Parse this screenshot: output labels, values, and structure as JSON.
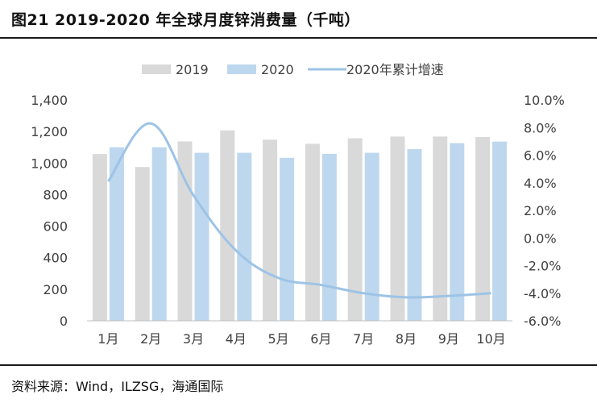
{
  "figure": {
    "title": "图21 2019-2020 年全球月度锌消费量（千吨）",
    "source": "资料来源：Wind，ILZSG，海通国际"
  },
  "chart_data": {
    "type": "bar",
    "categories": [
      "1月",
      "2月",
      "3月",
      "4月",
      "5月",
      "6月",
      "7月",
      "8月",
      "9月",
      "10月"
    ],
    "series": [
      {
        "name": "2019",
        "type": "bar",
        "axis": "left",
        "color": "#d9d9d9",
        "values": [
          1057,
          975,
          1137,
          1207,
          1148,
          1122,
          1157,
          1168,
          1168,
          1165
        ]
      },
      {
        "name": "2020",
        "type": "bar",
        "axis": "left",
        "color": "#bdd7ee",
        "values": [
          1100,
          1100,
          1065,
          1065,
          1033,
          1058,
          1065,
          1088,
          1126,
          1136
        ]
      },
      {
        "name": "2020年累计增速",
        "type": "line",
        "axis": "right",
        "color": "#9dc3e6",
        "values": [
          4.1,
          8.3,
          3.1,
          -0.9,
          -2.9,
          -3.4,
          -4.0,
          -4.3,
          -4.2,
          -4.0
        ]
      }
    ],
    "y_left": {
      "min": 0,
      "max": 1400,
      "step": 200,
      "tick_labels": [
        "0",
        "200",
        "400",
        "600",
        "800",
        "1,000",
        "1,200",
        "1,400"
      ]
    },
    "y_right": {
      "min": -6,
      "max": 10,
      "step": 2,
      "tick_labels": [
        "-6.0%",
        "-4.0%",
        "-2.0%",
        "0.0%",
        "2.0%",
        "4.0%",
        "6.0%",
        "8.0%",
        "10.0%"
      ]
    },
    "legend_position": "top",
    "grid": false
  }
}
